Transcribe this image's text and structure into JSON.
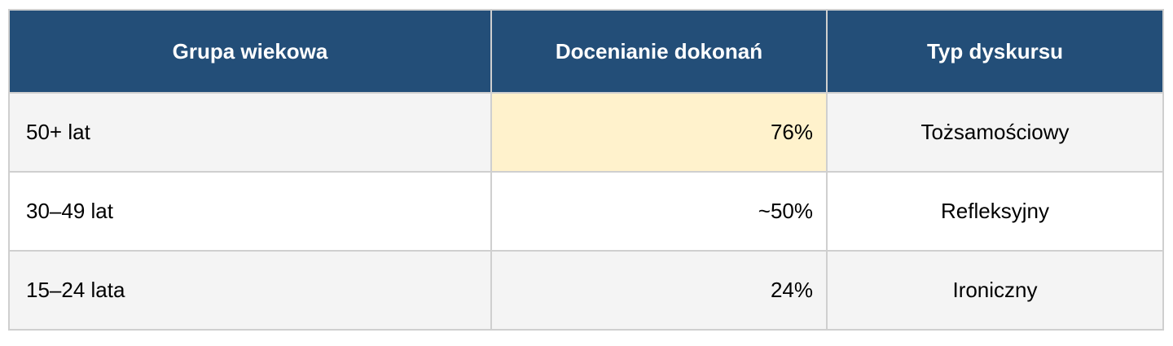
{
  "table": {
    "headers": [
      "Grupa wiekowa",
      "Docenianie dokonań",
      "Typ dyskursu"
    ],
    "rows": [
      [
        "50+ lat",
        "76%",
        "Tożsamościowy"
      ],
      [
        "30–49 lat",
        "~50%",
        "Refleksyjny"
      ],
      [
        "15–24 lata",
        "24%",
        "Ironiczny"
      ]
    ],
    "highlighted_cell": {
      "row": 0,
      "column": 1
    },
    "colors": {
      "header_bg": "#234e78",
      "highlight": "#fff2cc",
      "stripe": "#f4f4f4",
      "border": "#cfcfcf"
    }
  }
}
